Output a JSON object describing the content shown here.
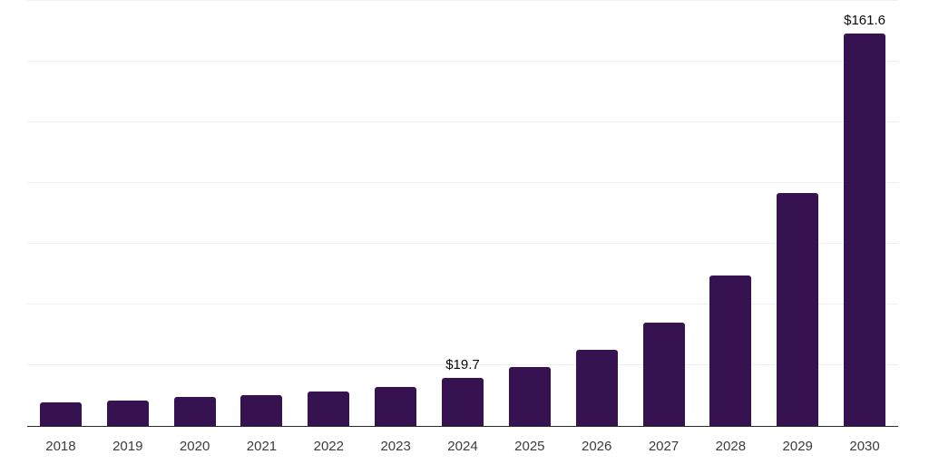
{
  "chart_data": {
    "type": "bar",
    "categories": [
      "2018",
      "2019",
      "2020",
      "2021",
      "2022",
      "2023",
      "2024",
      "2025",
      "2026",
      "2027",
      "2028",
      "2029",
      "2030"
    ],
    "values": [
      9.7,
      10.6,
      11.8,
      12.7,
      14.3,
      15.9,
      19.7,
      24.2,
      31.2,
      42.4,
      62.1,
      96.0,
      161.6
    ],
    "data_labels": {
      "2024": "$19.7",
      "2030": "$161.6"
    },
    "title": "",
    "xlabel": "",
    "ylabel": "",
    "ylim": [
      0,
      175
    ],
    "grid_step": 25,
    "grid": true,
    "legend_position": "none",
    "colors": {
      "bar": "#361350",
      "gridline": "#efefef",
      "axis_line": "#2b2b2b",
      "tick_label": "#3c3c3c",
      "data_label": "#0a0a0a",
      "background": "#ffffff"
    }
  }
}
